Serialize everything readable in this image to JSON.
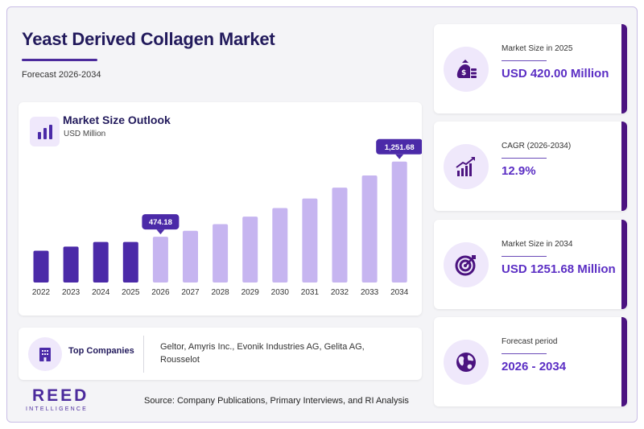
{
  "header": {
    "title": "Yeast Derived Collagen Market",
    "subtitle": "Forecast 2026-2034"
  },
  "chart_panel": {
    "title": "Market Size Outlook",
    "unit": "USD Million"
  },
  "chart_data": {
    "type": "bar",
    "categories": [
      "2022",
      "2023",
      "2024",
      "2025",
      "2026",
      "2027",
      "2028",
      "2029",
      "2030",
      "2031",
      "2032",
      "2033",
      "2034"
    ],
    "values": [
      329.4,
      371.9,
      419.9,
      420.0,
      474.18,
      535.4,
      604.4,
      682.4,
      770.4,
      869.8,
      982.0,
      1108.7,
      1251.68
    ],
    "historical_color": "#4b2aa8",
    "forecast_color": "#c6b5f0",
    "callouts": [
      {
        "category": "2026",
        "label": "474.18"
      },
      {
        "category": "2034",
        "label": "1,251.68"
      }
    ],
    "callout_color": "#4b2aa8",
    "ylim": [
      0,
      1300
    ],
    "grid": false,
    "y_axis_visible": false
  },
  "companies": {
    "label": "Top Companies",
    "list": "Geltor, Amyris Inc., Evonik Industries AG, Gelita AG, Rousselot"
  },
  "stats": [
    {
      "label": "Market Size in 2025",
      "value": "USD 420.00 Million",
      "icon": "money-bag-icon"
    },
    {
      "label": "CAGR (2026-2034)",
      "value": "12.9%",
      "icon": "growth-chart-icon"
    },
    {
      "label": "Market Size in 2034",
      "value": "USD 1251.68 Million",
      "icon": "target-icon"
    },
    {
      "label": "Forecast period",
      "value": "2026 - 2034",
      "icon": "globe-icon"
    }
  ],
  "footer": {
    "logo_main": "REED",
    "logo_sub": "INTELLIGENCE",
    "source": "Source: Company Publications, Primary Interviews, and RI Analysis"
  },
  "colors": {
    "accent": "#4b2aa8",
    "stat_value": "#5b2ec4",
    "title": "#221a5c",
    "card_edge": "#4b1380"
  }
}
